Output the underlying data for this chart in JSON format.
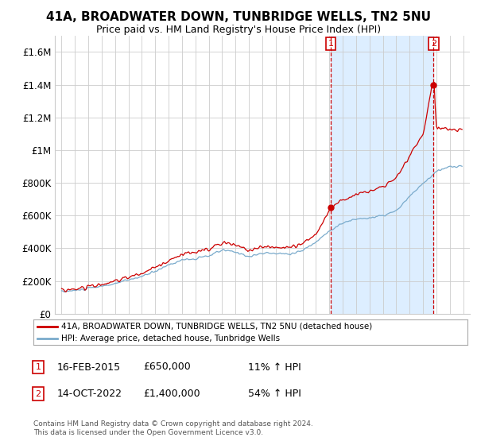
{
  "title": "41A, BROADWATER DOWN, TUNBRIDGE WELLS, TN2 5NU",
  "subtitle": "Price paid vs. HM Land Registry's House Price Index (HPI)",
  "legend_label_red": "41A, BROADWATER DOWN, TUNBRIDGE WELLS, TN2 5NU (detached house)",
  "legend_label_blue": "HPI: Average price, detached house, Tunbridge Wells",
  "transaction1_date": "16-FEB-2015",
  "transaction1_price": "£650,000",
  "transaction1_hpi": "11% ↑ HPI",
  "transaction1_year": 2015.12,
  "transaction1_value": 650000,
  "transaction2_date": "14-OCT-2022",
  "transaction2_price": "£1,400,000",
  "transaction2_hpi": "54% ↑ HPI",
  "transaction2_year": 2022.79,
  "transaction2_value": 1400000,
  "ylabel_ticks": [
    "£0",
    "£200K",
    "£400K",
    "£600K",
    "£800K",
    "£1M",
    "£1.2M",
    "£1.4M",
    "£1.6M"
  ],
  "ytick_values": [
    0,
    200000,
    400000,
    600000,
    800000,
    1000000,
    1200000,
    1400000,
    1600000
  ],
  "ylim": [
    0,
    1700000
  ],
  "xlim_start": 1994.5,
  "xlim_end": 2025.5,
  "footer": "Contains HM Land Registry data © Crown copyright and database right 2024.\nThis data is licensed under the Open Government Licence v3.0.",
  "red_color": "#cc0000",
  "blue_color": "#7aabcc",
  "shade_color": "#ddeeff",
  "grid_color": "#cccccc",
  "background_color": "#ffffff",
  "title_fontsize": 11,
  "subtitle_fontsize": 9
}
